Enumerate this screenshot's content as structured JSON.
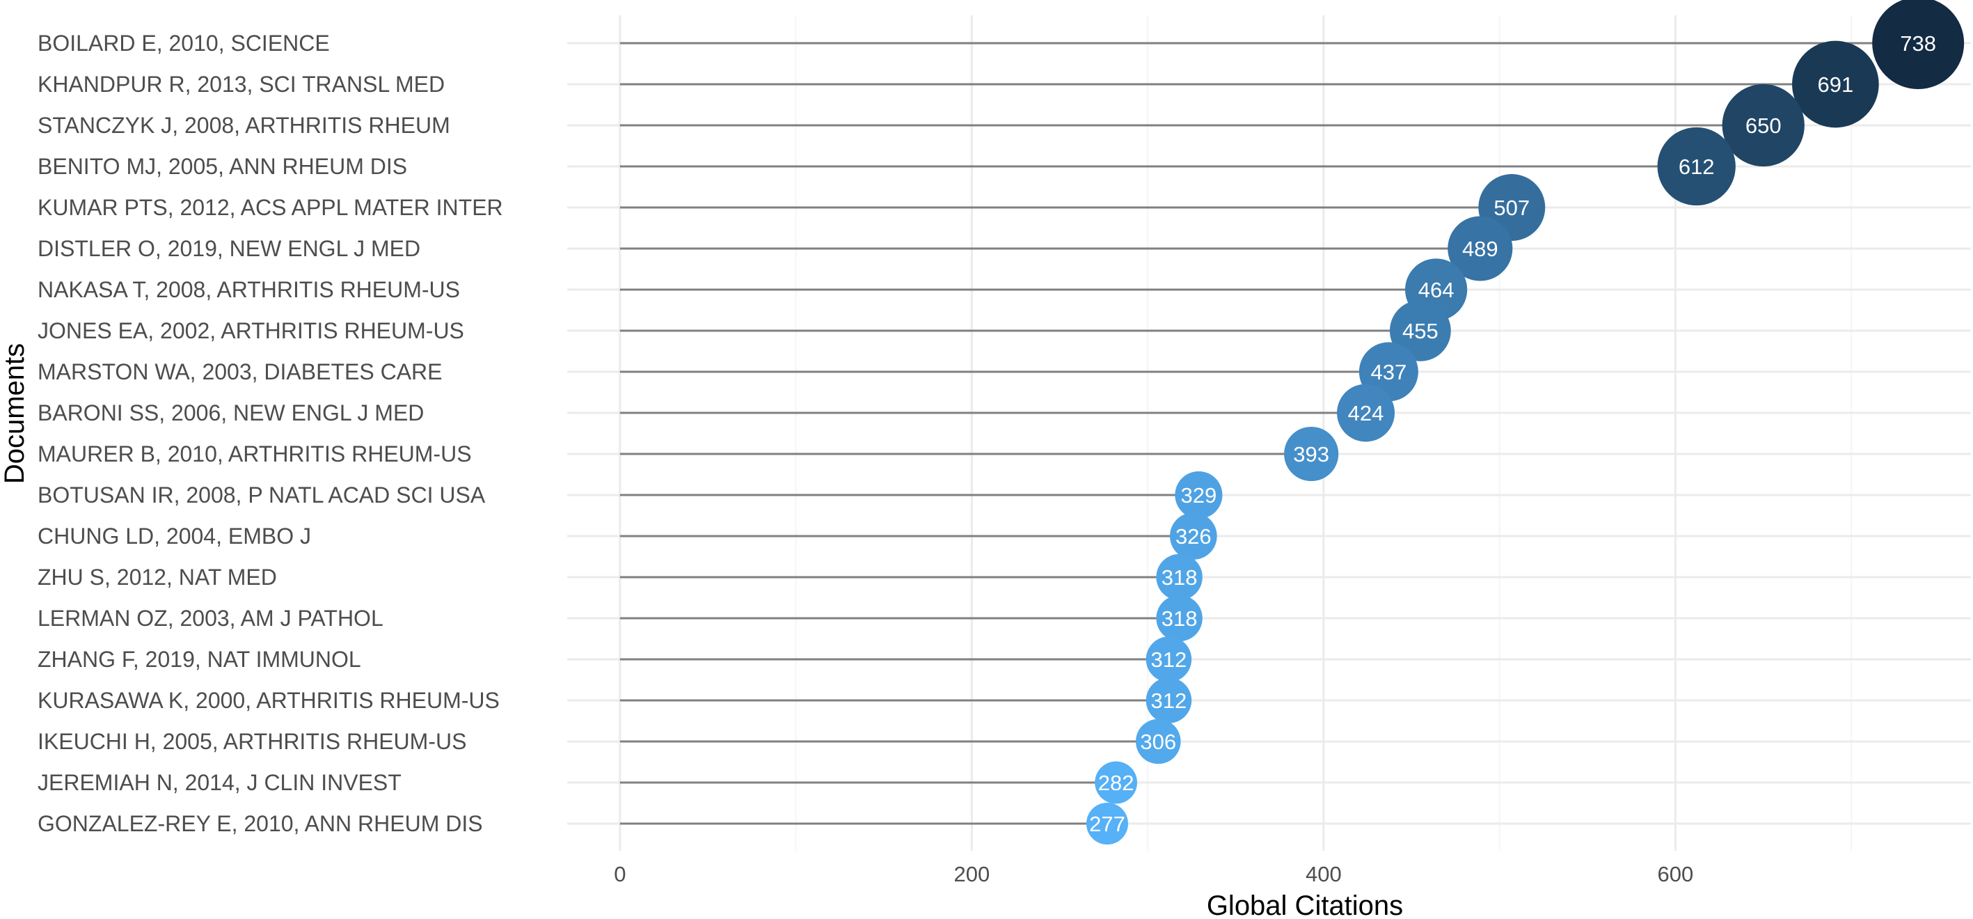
{
  "chart_data": {
    "type": "scatter",
    "subtype": "lollipop",
    "xlabel": "Global Citations",
    "ylabel": "Documents",
    "xlim": [
      -30,
      768
    ],
    "x_ticks": [
      0,
      200,
      400,
      600
    ],
    "x_tick_labels": [
      "0",
      "200",
      "400",
      "600"
    ],
    "grid": true,
    "legend": "none",
    "colors": {
      "low": "#56b1f7",
      "high": "#132b43",
      "stem": "#808080",
      "grid_major": "#ebebeb",
      "grid_minor": "#f5f5f5"
    },
    "points": [
      {
        "document": "BOILARD E, 2010, SCIENCE",
        "citations": 738
      },
      {
        "document": "KHANDPUR R, 2013, SCI TRANSL MED",
        "citations": 691
      },
      {
        "document": "STANCZYK J, 2008, ARTHRITIS RHEUM",
        "citations": 650
      },
      {
        "document": "BENITO MJ, 2005, ANN RHEUM DIS",
        "citations": 612
      },
      {
        "document": "KUMAR PTS, 2012, ACS APPL MATER INTER",
        "citations": 507
      },
      {
        "document": "DISTLER O, 2019, NEW ENGL J MED",
        "citations": 489
      },
      {
        "document": "NAKASA T, 2008, ARTHRITIS RHEUM-US",
        "citations": 464
      },
      {
        "document": "JONES EA, 2002, ARTHRITIS RHEUM-US",
        "citations": 455
      },
      {
        "document": "MARSTON WA, 2003, DIABETES CARE",
        "citations": 437
      },
      {
        "document": "BARONI SS, 2006, NEW ENGL J MED",
        "citations": 424
      },
      {
        "document": "MAURER B, 2010, ARTHRITIS RHEUM-US",
        "citations": 393
      },
      {
        "document": "BOTUSAN IR, 2008, P NATL ACAD SCI USA",
        "citations": 329
      },
      {
        "document": "CHUNG LD, 2004, EMBO J",
        "citations": 326
      },
      {
        "document": "ZHU S, 2012, NAT MED",
        "citations": 318
      },
      {
        "document": "LERMAN OZ, 2003, AM J PATHOL",
        "citations": 318
      },
      {
        "document": "ZHANG F, 2019, NAT IMMUNOL",
        "citations": 312
      },
      {
        "document": "KURASAWA K, 2000, ARTHRITIS RHEUM-US",
        "citations": 312
      },
      {
        "document": "IKEUCHI H, 2005, ARTHRITIS RHEUM-US",
        "citations": 306
      },
      {
        "document": "JEREMIAH N, 2014, J CLIN INVEST",
        "citations": 282
      },
      {
        "document": "GONZALEZ-REY E, 2010, ANN RHEUM DIS",
        "citations": 277
      }
    ]
  }
}
